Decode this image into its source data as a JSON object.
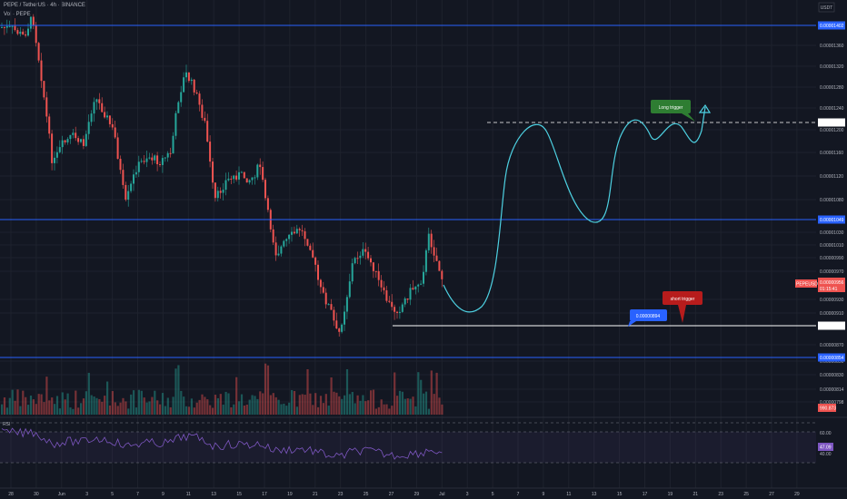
{
  "header": {
    "title": "PEPE / TetherUS · 4h · BINANCE",
    "indicator": "Vol · PEPE",
    "currency": "USDT"
  },
  "chart_data": {
    "type": "candlestick",
    "symbol": "PEPE / TetherUS",
    "timeframe": "4h",
    "exchange": "BINANCE",
    "y_ticks": [
      "0.00001400",
      "0.00001360",
      "0.00001320",
      "0.00001280",
      "0.00001240",
      "0.00001200",
      "0.00001160",
      "0.00001120",
      "0.00001080",
      "0.00001030",
      "0.00001010",
      "0.00000990",
      "0.00000970",
      "0.00000930",
      "0.00000910",
      "0.00000870",
      "0.00000850",
      "0.00000830",
      "0.00000814",
      "0.00000798"
    ],
    "x_ticks": [
      "28",
      "30",
      "Jun",
      "3",
      "5",
      "7",
      "9",
      "11",
      "13",
      "15",
      "17",
      "19",
      "21",
      "23",
      "25",
      "27",
      "29",
      "Jul",
      "3",
      "5",
      "7",
      "9",
      "11",
      "13",
      "15",
      "17",
      "19",
      "21",
      "23",
      "25",
      "27",
      "29"
    ],
    "levels": [
      {
        "value": "0.00001402",
        "color": "#2962ff",
        "style": "solid"
      },
      {
        "value": "0.00001049",
        "color": "#2962ff",
        "style": "solid"
      },
      {
        "value": "0.00000854",
        "color": "#2962ff",
        "style": "solid"
      },
      {
        "value": "0.00000894",
        "color": "#ffffff",
        "style": "solid"
      },
      {
        "value": "0.00001212",
        "color": "#ffffff",
        "style": "dashed"
      }
    ],
    "current_price": {
      "symbol": "PEPEUSDT",
      "value": "0.00000956",
      "countdown": "01:15:41"
    },
    "volume_label": "990.873",
    "annotations": [
      {
        "text": "Long trigger",
        "color": "#2e7d32"
      },
      {
        "text": "short trigger",
        "color": "#b71c1c"
      },
      {
        "text": "0.00000894",
        "color": "#2962ff"
      }
    ],
    "rsi": {
      "label": "RSI",
      "ticks": [
        "60.00",
        "40.00"
      ],
      "value": "47.09",
      "color": "#7e57c2"
    },
    "grid": true,
    "colors": {
      "up": "#26a69a",
      "down": "#ef5350",
      "background": "#131722",
      "projection": "#4dd0e1"
    }
  }
}
